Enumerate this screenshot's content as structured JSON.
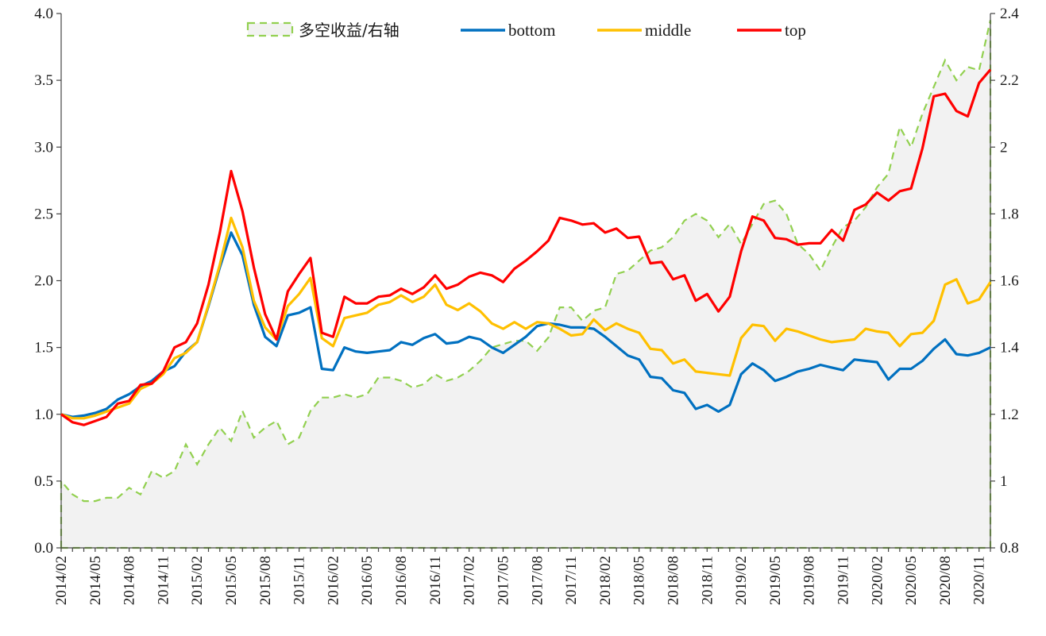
{
  "chart_data": {
    "type": "line",
    "title": "",
    "xlabel": "",
    "ylabel": "",
    "ylim": [
      0,
      4
    ],
    "y2lim": [
      0.8,
      2.4
    ],
    "yticks": [
      "0.0",
      "0.5",
      "1.0",
      "1.5",
      "2.0",
      "2.5",
      "3.0",
      "3.5",
      "4.0"
    ],
    "y2ticks": [
      "0.8",
      "1",
      "1.2",
      "1.4",
      "1.6",
      "1.8",
      "2",
      "2.2",
      "2.4"
    ],
    "grid": false,
    "legend_position": "top",
    "x": [
      "2014/02",
      "2014/03",
      "2014/04",
      "2014/05",
      "2014/06",
      "2014/07",
      "2014/08",
      "2014/09",
      "2014/10",
      "2014/11",
      "2014/12",
      "2015/01",
      "2015/02",
      "2015/03",
      "2015/04",
      "2015/05",
      "2015/06",
      "2015/07",
      "2015/08",
      "2015/09",
      "2015/10",
      "2015/11",
      "2015/12",
      "2016/01",
      "2016/02",
      "2016/03",
      "2016/04",
      "2016/05",
      "2016/06",
      "2016/07",
      "2016/08",
      "2016/09",
      "2016/10",
      "2016/11",
      "2016/12",
      "2017/01",
      "2017/02",
      "2017/03",
      "2017/04",
      "2017/05",
      "2017/06",
      "2017/07",
      "2017/08",
      "2017/09",
      "2017/10",
      "2017/11",
      "2017/12",
      "2018/01",
      "2018/02",
      "2018/03",
      "2018/04",
      "2018/05",
      "2018/06",
      "2018/07",
      "2018/08",
      "2018/09",
      "2018/10",
      "2018/11",
      "2018/12",
      "2019/01",
      "2019/02",
      "2019/03",
      "2019/04",
      "2019/05",
      "2019/06",
      "2019/07",
      "2019/08",
      "2019/09",
      "2019/10",
      "2019/11",
      "2019/12",
      "2020/01",
      "2020/02",
      "2020/03",
      "2020/04",
      "2020/05",
      "2020/06",
      "2020/07",
      "2020/08",
      "2020/09",
      "2020/10",
      "2020/11",
      "2020/12"
    ],
    "x_tick_labels": [
      "2014/02",
      "2014/05",
      "2014/08",
      "2014/11",
      "2015/02",
      "2015/05",
      "2015/08",
      "2015/11",
      "2016/02",
      "2016/05",
      "2016/08",
      "2016/11",
      "2017/02",
      "2017/05",
      "2017/08",
      "2017/11",
      "2018/02",
      "2018/05",
      "2018/08",
      "2018/11",
      "2019/02",
      "2019/05",
      "2019/08",
      "2019/11",
      "2020/02",
      "2020/05",
      "2020/08",
      "2020/11"
    ],
    "series": [
      {
        "name": "多空收益/右轴",
        "axis": "right",
        "style": "dashed-area",
        "color": "#92d050",
        "values": [
          1.0,
          0.96,
          0.94,
          0.94,
          0.95,
          0.95,
          0.98,
          0.96,
          1.03,
          1.01,
          1.03,
          1.11,
          1.05,
          1.11,
          1.16,
          1.12,
          1.21,
          1.13,
          1.16,
          1.18,
          1.11,
          1.13,
          1.21,
          1.25,
          1.25,
          1.26,
          1.25,
          1.26,
          1.31,
          1.31,
          1.3,
          1.28,
          1.29,
          1.32,
          1.3,
          1.31,
          1.33,
          1.36,
          1.4,
          1.41,
          1.42,
          1.42,
          1.39,
          1.43,
          1.52,
          1.52,
          1.48,
          1.51,
          1.52,
          1.62,
          1.63,
          1.66,
          1.69,
          1.7,
          1.73,
          1.78,
          1.8,
          1.78,
          1.73,
          1.77,
          1.71,
          1.77,
          1.83,
          1.84,
          1.8,
          1.71,
          1.68,
          1.63,
          1.7,
          1.76,
          1.78,
          1.82,
          1.88,
          1.92,
          2.06,
          2.0,
          2.1,
          2.18,
          2.26,
          2.2,
          2.24,
          2.23,
          2.38
        ]
      },
      {
        "name": "bottom",
        "axis": "left",
        "style": "line",
        "color": "#0070c0",
        "values": [
          1.0,
          0.98,
          0.99,
          1.01,
          1.04,
          1.11,
          1.15,
          1.21,
          1.25,
          1.32,
          1.36,
          1.47,
          1.54,
          1.81,
          2.1,
          2.36,
          2.19,
          1.82,
          1.58,
          1.51,
          1.74,
          1.76,
          1.8,
          1.34,
          1.33,
          1.5,
          1.47,
          1.46,
          1.47,
          1.48,
          1.54,
          1.52,
          1.57,
          1.6,
          1.53,
          1.54,
          1.58,
          1.56,
          1.5,
          1.46,
          1.52,
          1.58,
          1.66,
          1.68,
          1.67,
          1.65,
          1.65,
          1.64,
          1.58,
          1.51,
          1.44,
          1.41,
          1.28,
          1.27,
          1.18,
          1.16,
          1.04,
          1.07,
          1.02,
          1.07,
          1.3,
          1.38,
          1.33,
          1.25,
          1.28,
          1.32,
          1.34,
          1.37,
          1.35,
          1.33,
          1.41,
          1.4,
          1.39,
          1.26,
          1.34,
          1.34,
          1.4,
          1.49,
          1.56,
          1.45,
          1.44,
          1.46,
          1.5
        ]
      },
      {
        "name": "middle",
        "axis": "left",
        "style": "line",
        "color": "#ffc000",
        "values": [
          1.0,
          0.97,
          0.97,
          0.99,
          1.02,
          1.05,
          1.08,
          1.19,
          1.23,
          1.3,
          1.42,
          1.46,
          1.54,
          1.82,
          2.12,
          2.47,
          2.25,
          1.85,
          1.65,
          1.56,
          1.81,
          1.9,
          2.02,
          1.57,
          1.51,
          1.72,
          1.74,
          1.76,
          1.82,
          1.84,
          1.89,
          1.84,
          1.88,
          1.97,
          1.82,
          1.78,
          1.83,
          1.77,
          1.68,
          1.64,
          1.69,
          1.64,
          1.69,
          1.68,
          1.64,
          1.59,
          1.6,
          1.71,
          1.63,
          1.68,
          1.64,
          1.61,
          1.49,
          1.48,
          1.38,
          1.41,
          1.32,
          1.31,
          1.3,
          1.29,
          1.57,
          1.67,
          1.66,
          1.55,
          1.64,
          1.62,
          1.59,
          1.56,
          1.54,
          1.55,
          1.56,
          1.64,
          1.62,
          1.61,
          1.51,
          1.6,
          1.61,
          1.7,
          1.97,
          2.01,
          1.83,
          1.86,
          1.99
        ]
      },
      {
        "name": "top",
        "axis": "left",
        "style": "line",
        "color": "#ff0000",
        "values": [
          1.0,
          0.94,
          0.92,
          0.95,
          0.98,
          1.08,
          1.1,
          1.22,
          1.23,
          1.32,
          1.5,
          1.54,
          1.68,
          1.97,
          2.36,
          2.82,
          2.52,
          2.1,
          1.75,
          1.56,
          1.92,
          2.05,
          2.17,
          1.61,
          1.58,
          1.88,
          1.83,
          1.83,
          1.88,
          1.89,
          1.94,
          1.9,
          1.95,
          2.04,
          1.94,
          1.97,
          2.03,
          2.06,
          2.04,
          1.99,
          2.09,
          2.15,
          2.22,
          2.3,
          2.47,
          2.45,
          2.42,
          2.43,
          2.36,
          2.39,
          2.32,
          2.33,
          2.13,
          2.14,
          2.01,
          2.04,
          1.85,
          1.9,
          1.77,
          1.88,
          2.22,
          2.48,
          2.45,
          2.32,
          2.31,
          2.27,
          2.28,
          2.28,
          2.38,
          2.3,
          2.53,
          2.57,
          2.66,
          2.6,
          2.67,
          2.69,
          2.99,
          3.38,
          3.4,
          3.27,
          3.23,
          3.48,
          3.58
        ]
      }
    ]
  }
}
